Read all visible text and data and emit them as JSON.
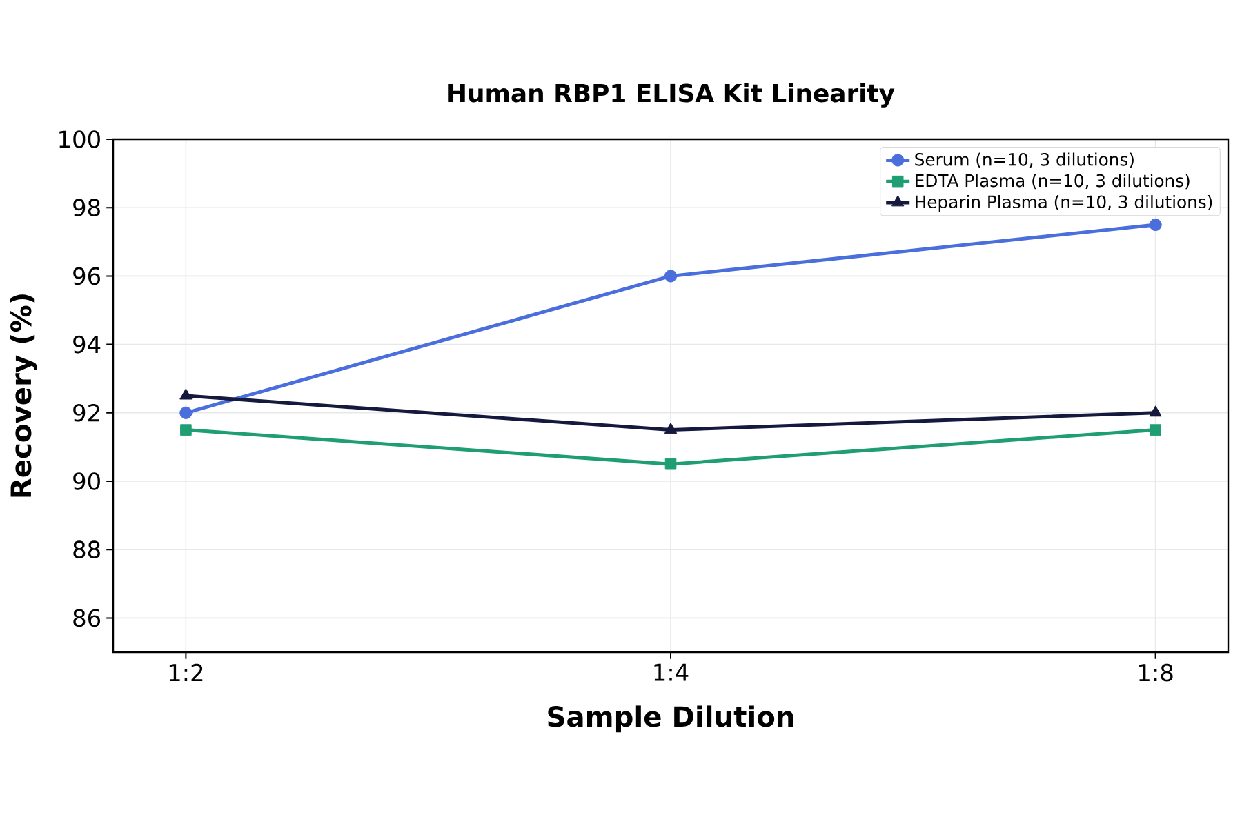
{
  "chart_data": {
    "type": "line",
    "title": "Human RBP1 ELISA Kit Linearity",
    "xlabel": "Sample Dilution",
    "ylabel": "Recovery (%)",
    "categories": [
      "1:2",
      "1:4",
      "1:8"
    ],
    "series": [
      {
        "name": "Serum (n=10, 3 dilutions)",
        "color": "#4a6fdc",
        "marker": "circle",
        "values": [
          92,
          96,
          97.5
        ]
      },
      {
        "name": "EDTA Plasma (n=10, 3 dilutions)",
        "color": "#1f9e74",
        "marker": "square",
        "values": [
          91.5,
          90.5,
          91.5
        ]
      },
      {
        "name": "Heparin Plasma (n=10, 3 dilutions)",
        "color": "#14193d",
        "marker": "triangle",
        "values": [
          92.5,
          91.5,
          92
        ]
      }
    ],
    "ylim": [
      85,
      100
    ],
    "yticks": [
      86,
      88,
      90,
      92,
      94,
      96,
      98,
      100
    ],
    "grid": true,
    "legend": "top right",
    "line_style": "solid"
  }
}
